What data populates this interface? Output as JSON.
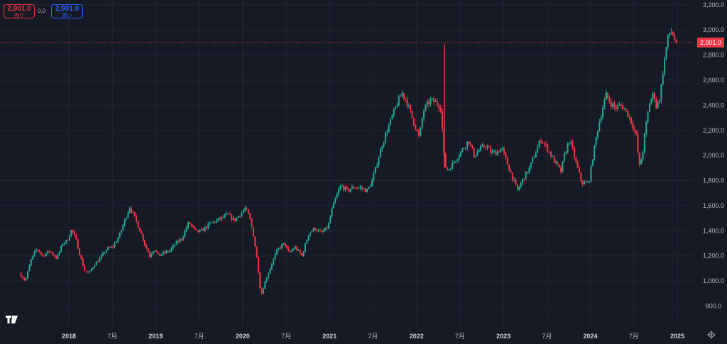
{
  "header": {
    "sell_price": "2,901.0",
    "sell_label": "売り",
    "spread": "0.0",
    "buy_price": "2,901.0",
    "buy_label": "買い"
  },
  "current_price_label": "2,901.0",
  "colors": {
    "up": "#22ab94",
    "down": "#f23645",
    "background": "#161a25",
    "grid": "#232632",
    "text": "#b2b5be",
    "buy": "#2962ff"
  },
  "icons": {
    "logo": "tradingview-logo-icon",
    "settings": "gear-icon"
  },
  "chart_data": {
    "type": "candlestick",
    "title": "",
    "xlabel": "",
    "ylabel": "",
    "ylim": [
      650,
      3250
    ],
    "y_ticks": [
      "800.0",
      "1,000.0",
      "1,200.0",
      "1,400.0",
      "1,600.0",
      "1,800.0",
      "2,000.0",
      "2,200.0",
      "2,400.0",
      "2,600.0",
      "2,800.0",
      "3,000.0",
      "3,200.0"
    ],
    "x_ticks": [
      "2018",
      "7月",
      "2019",
      "7月",
      "2020",
      "7月",
      "2021",
      "7月",
      "2022",
      "7月",
      "2023",
      "7月",
      "2024",
      "7月",
      "2025"
    ],
    "x_range": [
      2017.45,
      2025.0
    ],
    "current_price": 2901,
    "grid": true,
    "price_path": [
      [
        2017.45,
        1060
      ],
      [
        2017.52,
        1000
      ],
      [
        2017.58,
        1160
      ],
      [
        2017.65,
        1260
      ],
      [
        2017.72,
        1200
      ],
      [
        2017.8,
        1240
      ],
      [
        2017.88,
        1180
      ],
      [
        2017.95,
        1300
      ],
      [
        2018.0,
        1320
      ],
      [
        2018.05,
        1410
      ],
      [
        2018.1,
        1330
      ],
      [
        2018.15,
        1200
      ],
      [
        2018.2,
        1080
      ],
      [
        2018.25,
        1060
      ],
      [
        2018.3,
        1120
      ],
      [
        2018.38,
        1180
      ],
      [
        2018.45,
        1250
      ],
      [
        2018.52,
        1270
      ],
      [
        2018.6,
        1360
      ],
      [
        2018.66,
        1480
      ],
      [
        2018.72,
        1590
      ],
      [
        2018.78,
        1500
      ],
      [
        2018.85,
        1380
      ],
      [
        2018.9,
        1280
      ],
      [
        2018.95,
        1200
      ],
      [
        2019.0,
        1260
      ],
      [
        2019.05,
        1200
      ],
      [
        2019.1,
        1220
      ],
      [
        2019.18,
        1240
      ],
      [
        2019.25,
        1300
      ],
      [
        2019.32,
        1340
      ],
      [
        2019.4,
        1470
      ],
      [
        2019.48,
        1390
      ],
      [
        2019.55,
        1400
      ],
      [
        2019.65,
        1460
      ],
      [
        2019.75,
        1490
      ],
      [
        2019.85,
        1530
      ],
      [
        2019.92,
        1480
      ],
      [
        2020.0,
        1540
      ],
      [
        2020.05,
        1580
      ],
      [
        2020.1,
        1500
      ],
      [
        2020.15,
        1340
      ],
      [
        2020.2,
        1080
      ],
      [
        2020.23,
        880
      ],
      [
        2020.28,
        1000
      ],
      [
        2020.35,
        1130
      ],
      [
        2020.42,
        1250
      ],
      [
        2020.5,
        1300
      ],
      [
        2020.55,
        1220
      ],
      [
        2020.62,
        1270
      ],
      [
        2020.7,
        1200
      ],
      [
        2020.78,
        1380
      ],
      [
        2020.85,
        1420
      ],
      [
        2020.92,
        1380
      ],
      [
        2021.0,
        1430
      ],
      [
        2021.05,
        1580
      ],
      [
        2021.1,
        1680
      ],
      [
        2021.15,
        1760
      ],
      [
        2021.22,
        1720
      ],
      [
        2021.3,
        1750
      ],
      [
        2021.38,
        1740
      ],
      [
        2021.45,
        1720
      ],
      [
        2021.5,
        1780
      ],
      [
        2021.55,
        1900
      ],
      [
        2021.62,
        2080
      ],
      [
        2021.68,
        2200
      ],
      [
        2021.75,
        2330
      ],
      [
        2021.8,
        2420
      ],
      [
        2021.85,
        2500
      ],
      [
        2021.9,
        2440
      ],
      [
        2021.95,
        2340
      ],
      [
        2022.0,
        2240
      ],
      [
        2022.05,
        2140
      ],
      [
        2022.1,
        2360
      ],
      [
        2022.18,
        2440
      ],
      [
        2022.25,
        2420
      ],
      [
        2022.3,
        2380
      ],
      [
        2022.34,
        1930
      ],
      [
        2022.38,
        1880
      ],
      [
        2022.45,
        1950
      ],
      [
        2022.55,
        2050
      ],
      [
        2022.62,
        2120
      ],
      [
        2022.68,
        2000
      ],
      [
        2022.75,
        2050
      ],
      [
        2022.82,
        2080
      ],
      [
        2022.88,
        2020
      ],
      [
        2022.95,
        2030
      ],
      [
        2023.0,
        2060
      ],
      [
        2023.05,
        1960
      ],
      [
        2023.12,
        1830
      ],
      [
        2023.18,
        1720
      ],
      [
        2023.25,
        1820
      ],
      [
        2023.32,
        1900
      ],
      [
        2023.38,
        2010
      ],
      [
        2023.45,
        2130
      ],
      [
        2023.52,
        2060
      ],
      [
        2023.6,
        1960
      ],
      [
        2023.68,
        1870
      ],
      [
        2023.72,
        2000
      ],
      [
        2023.78,
        2130
      ],
      [
        2023.85,
        1950
      ],
      [
        2023.92,
        1780
      ],
      [
        2024.0,
        1780
      ],
      [
        2024.05,
        2000
      ],
      [
        2024.1,
        2200
      ],
      [
        2024.15,
        2350
      ],
      [
        2024.2,
        2480
      ],
      [
        2024.25,
        2420
      ],
      [
        2024.3,
        2380
      ],
      [
        2024.38,
        2400
      ],
      [
        2024.45,
        2330
      ],
      [
        2024.5,
        2250
      ],
      [
        2024.55,
        2150
      ],
      [
        2024.58,
        1900
      ],
      [
        2024.62,
        2020
      ],
      [
        2024.65,
        2200
      ],
      [
        2024.7,
        2420
      ],
      [
        2024.75,
        2500
      ],
      [
        2024.78,
        2380
      ],
      [
        2024.82,
        2470
      ],
      [
        2024.86,
        2700
      ],
      [
        2024.9,
        2900
      ],
      [
        2024.94,
        3000
      ],
      [
        2024.97,
        2960
      ],
      [
        2025.0,
        2901
      ]
    ],
    "spikes": [
      [
        2022.32,
        2890,
        1900
      ]
    ]
  }
}
